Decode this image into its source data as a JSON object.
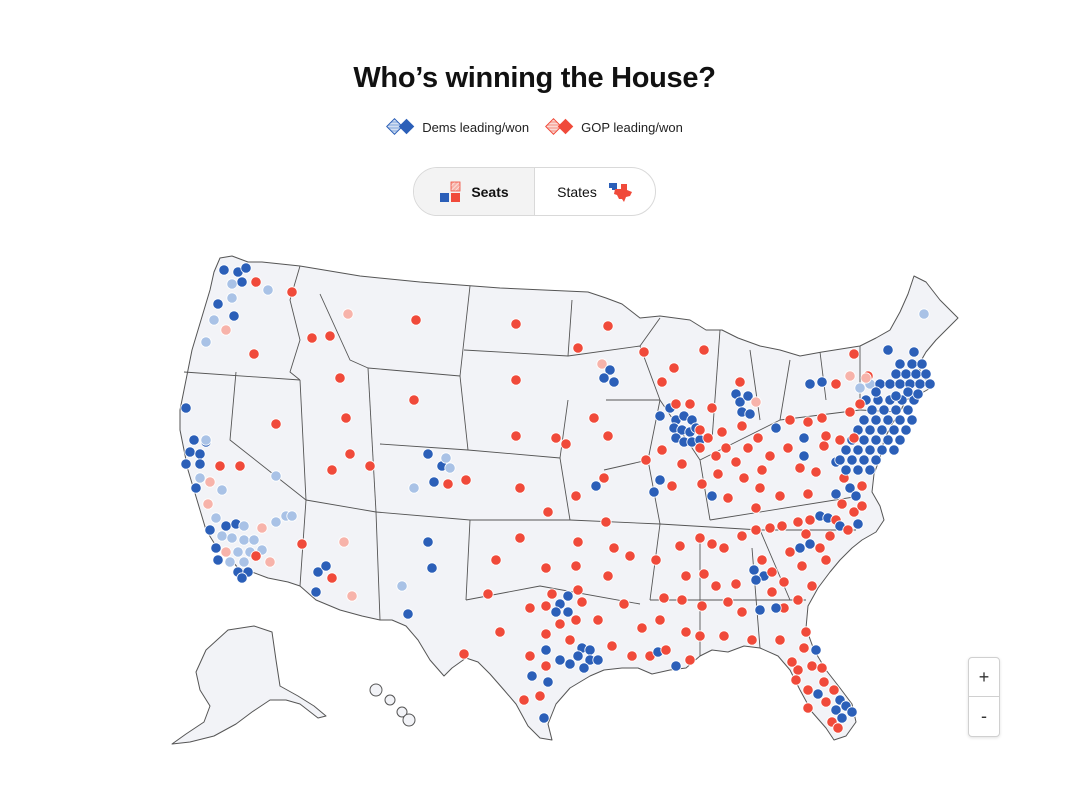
{
  "header": {
    "title": "Who’s winning the House?"
  },
  "legend": {
    "dem_label": "Dems leading/won",
    "gop_label": "GOP leading/won"
  },
  "toggle": {
    "seats_label": "Seats",
    "states_label": "States",
    "selected": "Seats"
  },
  "zoom": {
    "in_label": "+",
    "out_label": "-"
  },
  "colors": {
    "dem_won": "#2b5fb8",
    "dem_leading": "#a9c2e6",
    "gop_won": "#f04a3a",
    "gop_leading": "#f7b3aa",
    "land": "#f2f3f7",
    "state_border": "#555555"
  },
  "icons": {
    "dem_legend": "dem-diamond-pair-icon",
    "gop_legend": "gop-diamond-pair-icon",
    "seats": "seats-squares-icon",
    "states": "states-map-icon"
  }
}
